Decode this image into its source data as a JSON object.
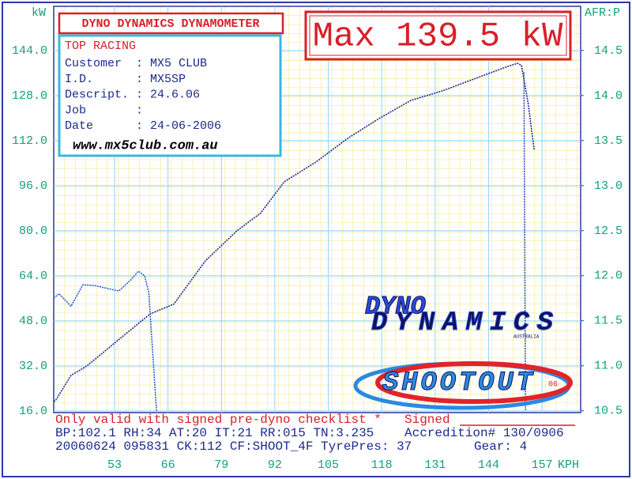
{
  "chart_data": {
    "type": "line",
    "title": "DYNO DYNAMICS DYNAMOMETER",
    "max_label": "Max 139.5 kW",
    "ylabel": "kW",
    "y2label": "AFR:P",
    "xlabel": "KPH",
    "xlim": [
      38.2,
      166.4
    ],
    "xticks": [
      53,
      66,
      79,
      92,
      105,
      118,
      131,
      144,
      157
    ],
    "ylim": [
      15.4,
      159.7
    ],
    "yticks": [
      {
        "value": 16,
        "label": "16.0"
      },
      {
        "value": 32,
        "label": "32.0"
      },
      {
        "value": 48,
        "label": "48.0"
      },
      {
        "value": 64,
        "label": "64.0"
      },
      {
        "value": 80,
        "label": "80.0"
      },
      {
        "value": 96,
        "label": "96.0"
      },
      {
        "value": 112,
        "label": "112.0"
      },
      {
        "value": 128,
        "label": "128.0"
      },
      {
        "value": 144,
        "label": "144.0"
      }
    ],
    "y2lim": [
      10.48,
      14.99
    ],
    "y2ticks": [
      10.5,
      {
        "value": 11,
        "label": "11.0"
      },
      11.5,
      {
        "value": 12,
        "label": "12.0"
      },
      12.5,
      {
        "value": 13,
        "label": "13.0"
      },
      13.5,
      {
        "value": 14,
        "label": "14.0"
      },
      14.5
    ],
    "grid": true,
    "series": [
      {
        "color": "#1a2a8a",
        "x": [
          38.2,
          38.6,
          42.4,
          46.3,
          54,
          61.7,
          67.4,
          75.1,
          82.8,
          88.5,
          94.3,
          102,
          109.7,
          117.4,
          125.1,
          132.8,
          140.5,
          148.2,
          151.1,
          152,
          153.6,
          155.1
        ],
        "values": [
          19.4,
          19.6,
          28.6,
          32,
          41.3,
          50.5,
          53.9,
          69.3,
          80,
          86.2,
          97.4,
          104.4,
          112.8,
          119.9,
          126.3,
          129.7,
          133.9,
          138.1,
          139.5,
          138.7,
          125.5,
          108.6
        ]
      },
      {
        "color": "#2a5ad0",
        "axis": "y2",
        "x": [
          38.2,
          39.5,
          42.4,
          45.3,
          48.2,
          54,
          56.9,
          58.8,
          60.3,
          61.3,
          62.2,
          63.2,
          100,
          152.6,
          153
        ],
        "values": [
          11.75,
          11.8,
          11.66,
          11.9,
          11.89,
          11.83,
          11.95,
          12.05,
          12.0,
          11.82,
          11.2,
          10.5,
          null,
          14.26,
          10.5
        ]
      }
    ]
  },
  "info_box": {
    "heading": "TOP RACING",
    "rows": [
      [
        "Customer",
        ": MX5 CLUB"
      ],
      [
        "I.D.",
        ": MX5SP"
      ],
      [
        "Descript.",
        ": 24.6.06"
      ],
      [
        "Job",
        ":"
      ],
      [
        "Date",
        ": 24-06-2006"
      ]
    ],
    "url": "www.mx5club.com.au"
  },
  "logos": {
    "dyno": "DYNO",
    "dynamics": "DYNAMICS",
    "australia": "AUSTRALIA",
    "shootout": "SHOOTOUT",
    "year": "06"
  },
  "footer": {
    "notice": "Only valid with signed pre-dyno checklist *",
    "signed": "Signed",
    "conditions": "BP:102.1 RH:34 AT:20 IT:21  RR:015 TN:3.235",
    "accreditation": "Accredition# 130/0906",
    "record": "20060624 095831 CK:112 CF:SHOOT_4F TyrePres: 37",
    "gear": "Gear: 4"
  }
}
